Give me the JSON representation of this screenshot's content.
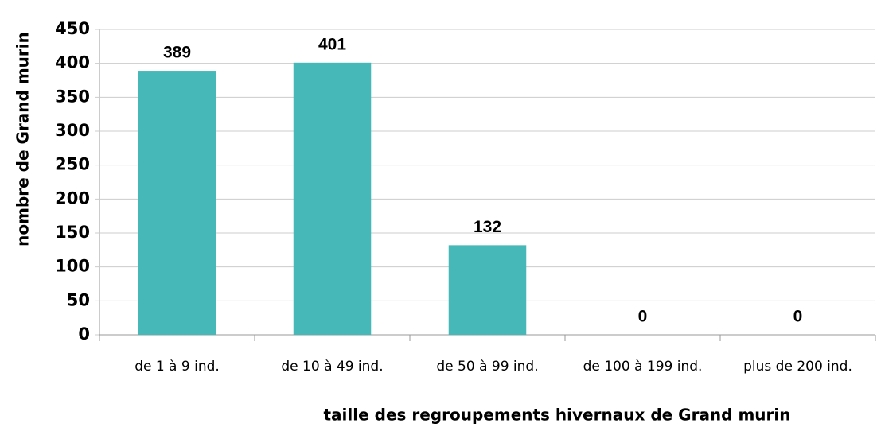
{
  "chart_data": {
    "type": "bar",
    "y_label": "nombre de Grand murin",
    "x_label": "taille des regroupements hivernaux de Grand murin",
    "categories": [
      "de 1 à 9 ind.",
      "de 10 à 49 ind.",
      "de 50 à 99 ind.",
      "de 100 à 199 ind.",
      "plus de 200 ind."
    ],
    "values": [
      389,
      401,
      132,
      0,
      0
    ],
    "color": "#46b8b8",
    "ylim": [
      0,
      450
    ],
    "yticks": [
      0,
      50,
      100,
      150,
      200,
      250,
      300,
      350,
      400,
      450
    ],
    "grid": true
  }
}
